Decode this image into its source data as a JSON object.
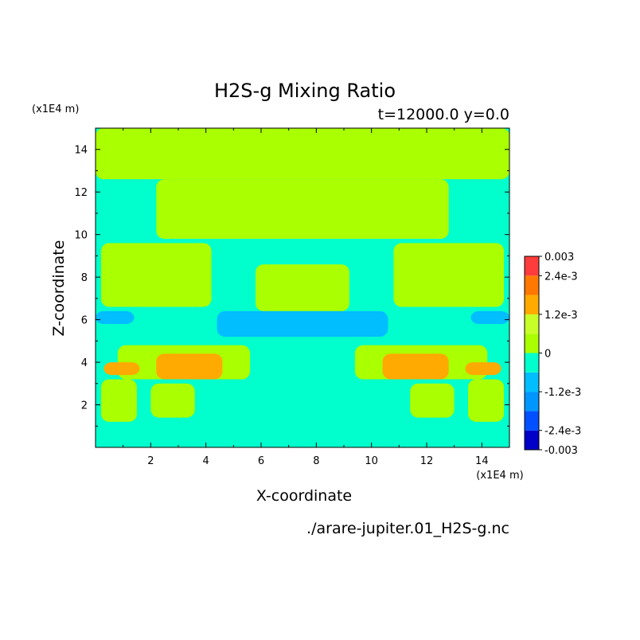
{
  "chart_data": {
    "type": "heatmap",
    "title": "H2S-g Mixing Ratio",
    "subtitle": "t=12000.0 y=0.0",
    "xlabel": "X-coordinate",
    "ylabel": "Z-coordinate",
    "x_unit": "(x1E4 m)",
    "y_unit": "(x1E4 m)",
    "xlim": [
      0,
      15
    ],
    "ylim": [
      0,
      15
    ],
    "x_ticks": [
      2,
      4,
      6,
      8,
      10,
      12,
      14
    ],
    "y_ticks": [
      2,
      4,
      6,
      8,
      10,
      12,
      14
    ],
    "grid": false,
    "footer": "./arare-jupiter.01_H2S-g.nc",
    "colorbar": {
      "placement": "right",
      "range": [
        -0.003,
        0.003
      ],
      "levels": [
        {
          "from": -0.003,
          "to": -0.0024,
          "color": "#0000c8"
        },
        {
          "from": -0.0024,
          "to": -0.0018,
          "color": "#0050ff"
        },
        {
          "from": -0.0018,
          "to": -0.0012,
          "color": "#0096ff"
        },
        {
          "from": -0.0012,
          "to": -0.0006,
          "color": "#00beff"
        },
        {
          "from": -0.0006,
          "to": 0.0,
          "color": "#00ffcc"
        },
        {
          "from": 0.0,
          "to": 0.0006,
          "color": "#aaff00"
        },
        {
          "from": 0.0006,
          "to": 0.0012,
          "color": "#c8ff28"
        },
        {
          "from": 0.0012,
          "to": 0.0018,
          "color": "#ffaa00"
        },
        {
          "from": 0.0018,
          "to": 0.0024,
          "color": "#ff7800"
        },
        {
          "from": 0.0024,
          "to": 0.003,
          "color": "#ff3c3c"
        }
      ],
      "tick_labels": [
        {
          "value": 0.003,
          "label": "0.003"
        },
        {
          "value": 0.0024,
          "label": "2.4e-3"
        },
        {
          "value": 0.0012,
          "label": "1.2e-3"
        },
        {
          "value": 0.0,
          "label": "0"
        },
        {
          "value": -0.0012,
          "label": "-1.2e-3"
        },
        {
          "value": -0.0024,
          "label": "-2.4e-3"
        },
        {
          "value": -0.003,
          "label": "-0.003"
        }
      ]
    },
    "field": {
      "background": "#00ffcc",
      "regions": [
        {
          "level": "#aaff00",
          "x": [
            0,
            15
          ],
          "z": [
            12.6,
            15
          ]
        },
        {
          "level": "#aaff00",
          "x": [
            2.2,
            12.8
          ],
          "z": [
            9.8,
            12.6
          ]
        },
        {
          "level": "#aaff00",
          "x": [
            0.2,
            4.2
          ],
          "z": [
            6.6,
            9.6
          ]
        },
        {
          "level": "#aaff00",
          "x": [
            10.8,
            14.8
          ],
          "z": [
            6.6,
            9.6
          ]
        },
        {
          "level": "#aaff00",
          "x": [
            5.8,
            9.2
          ],
          "z": [
            6.4,
            8.6
          ]
        },
        {
          "level": "#aaff00",
          "x": [
            0.8,
            5.6
          ],
          "z": [
            3.2,
            4.8
          ]
        },
        {
          "level": "#aaff00",
          "x": [
            9.4,
            14.2
          ],
          "z": [
            3.2,
            4.8
          ]
        },
        {
          "level": "#aaff00",
          "x": [
            0.2,
            1.5
          ],
          "z": [
            1.2,
            3.2
          ]
        },
        {
          "level": "#aaff00",
          "x": [
            13.5,
            14.8
          ],
          "z": [
            1.2,
            3.2
          ]
        },
        {
          "level": "#aaff00",
          "x": [
            2.0,
            3.6
          ],
          "z": [
            1.4,
            3.0
          ]
        },
        {
          "level": "#aaff00",
          "x": [
            11.4,
            13.0
          ],
          "z": [
            1.4,
            3.0
          ]
        },
        {
          "level": "#00beff",
          "x": [
            4.4,
            10.6
          ],
          "z": [
            5.2,
            6.4
          ]
        },
        {
          "level": "#00beff",
          "x": [
            0,
            1.4
          ],
          "z": [
            5.8,
            6.4
          ]
        },
        {
          "level": "#00beff",
          "x": [
            13.6,
            15
          ],
          "z": [
            5.8,
            6.4
          ]
        },
        {
          "level": "#ffaa00",
          "x": [
            0.3,
            1.6
          ],
          "z": [
            3.4,
            4.0
          ]
        },
        {
          "level": "#ffaa00",
          "x": [
            13.4,
            14.7
          ],
          "z": [
            3.4,
            4.0
          ]
        },
        {
          "level": "#ffaa00",
          "x": [
            2.2,
            4.6
          ],
          "z": [
            3.2,
            4.4
          ]
        },
        {
          "level": "#ffaa00",
          "x": [
            10.4,
            12.8
          ],
          "z": [
            3.2,
            4.4
          ]
        }
      ]
    }
  }
}
